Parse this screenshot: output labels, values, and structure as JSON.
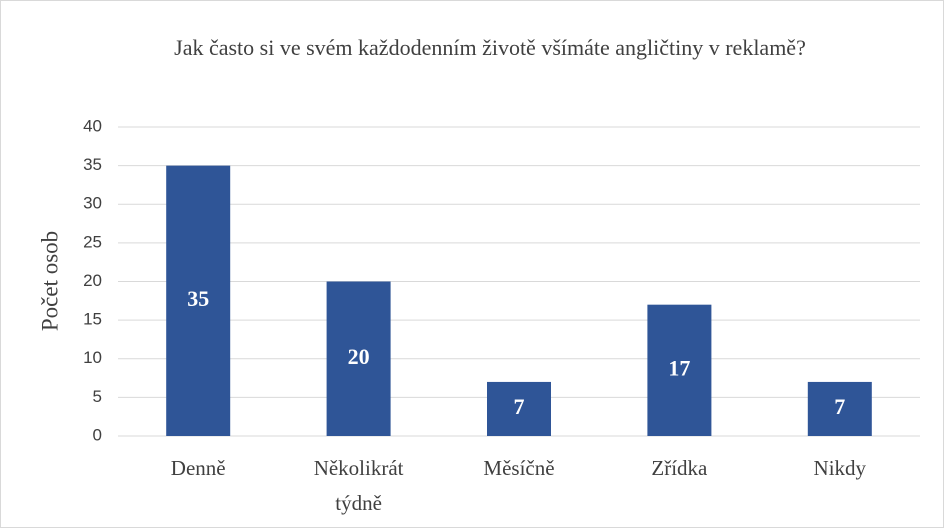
{
  "chart_data": {
    "type": "bar",
    "title": "Jak často si ve svém každodenním životě všímáte angličtiny v reklamě?",
    "y_label": "Počet osob",
    "categories": [
      "Denně",
      "Několikrát týdně",
      "Měsíčně",
      "Zřídka",
      "Nikdy"
    ],
    "values": [
      35,
      20,
      7,
      17,
      7
    ],
    "color": "#2f5597",
    "ylim": [
      0,
      40
    ],
    "yticks": [
      0,
      5,
      10,
      15,
      20,
      25,
      30,
      35,
      40
    ],
    "grid": true
  }
}
